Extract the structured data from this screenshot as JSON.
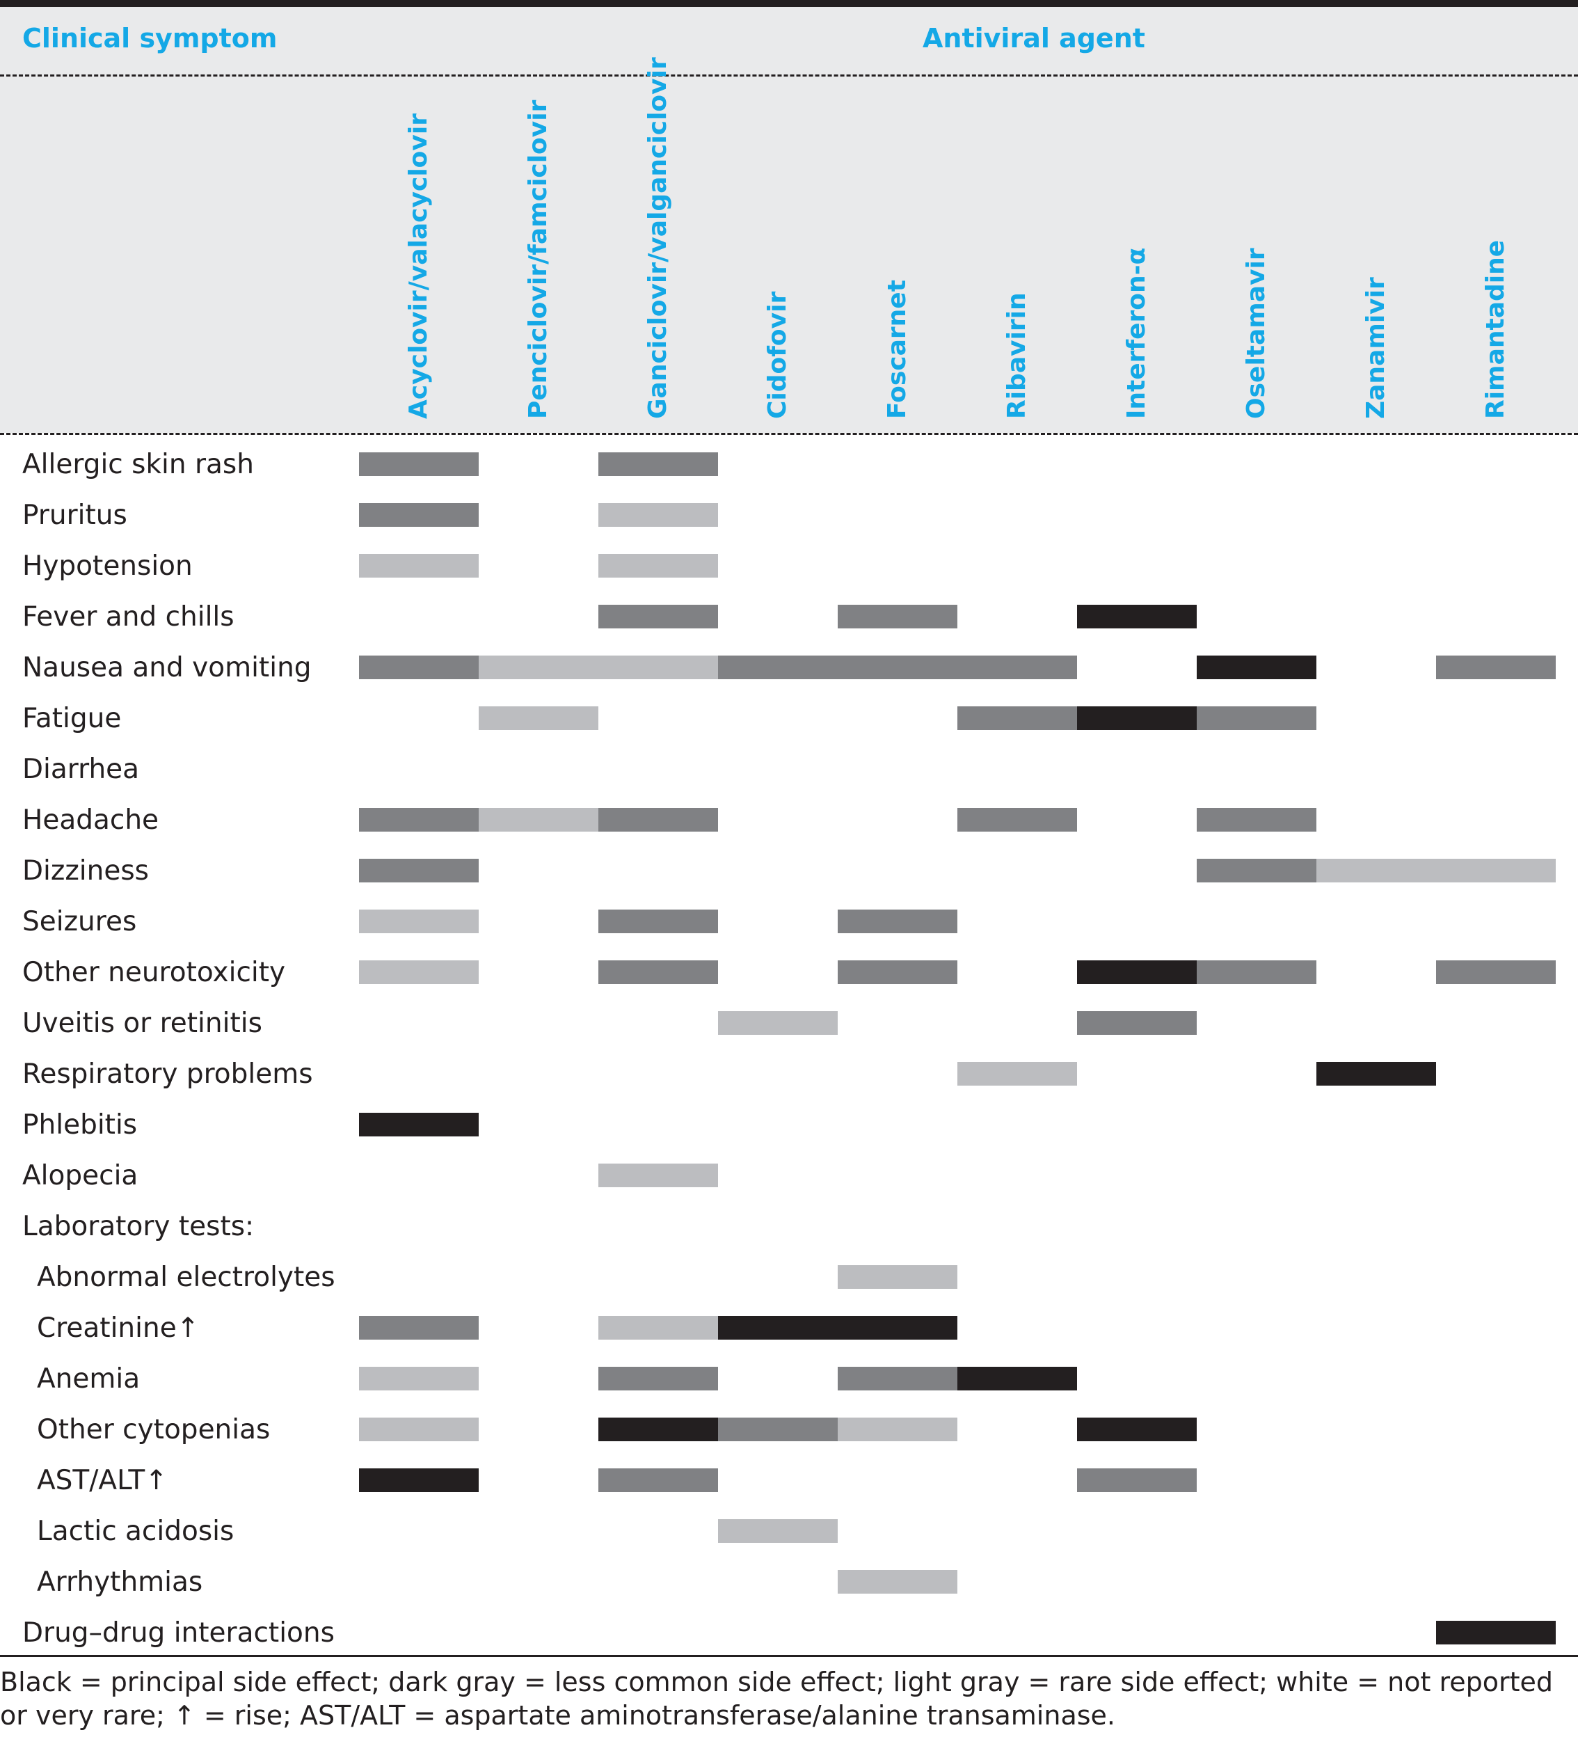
{
  "header": {
    "symptom_title": "Clinical symptom",
    "agent_title": "Antiviral agent"
  },
  "colors": {
    "header_text": "#14a8e6",
    "header_bg": "#e9eaeb",
    "black": "#231f20",
    "dark_gray": "#808184",
    "light_gray": "#bcbdc0"
  },
  "agents": [
    "Acyclovir/valacyclovir",
    "Penciclovir/famciclovir",
    "Ganciclovir/valganciclovir",
    "Cidofovir",
    "Foscarnet",
    "Ribavirin",
    "Interferon-α",
    "Oseltamavir",
    "Zanamivir",
    "Rimantadine"
  ],
  "rows": [
    {
      "label": "Allergic skin rash",
      "levels": [
        "dark",
        "",
        "dark",
        "",
        "",
        "",
        "",
        "",
        "",
        ""
      ]
    },
    {
      "label": "Pruritus",
      "levels": [
        "dark",
        "",
        "light",
        "",
        "",
        "",
        "",
        "",
        "",
        ""
      ]
    },
    {
      "label": "Hypotension",
      "levels": [
        "light",
        "",
        "light",
        "",
        "",
        "",
        "",
        "",
        "",
        ""
      ]
    },
    {
      "label": "Fever and chills",
      "levels": [
        "",
        "",
        "dark",
        "",
        "dark",
        "",
        "black",
        "",
        "",
        ""
      ]
    },
    {
      "label": "Nausea and vomiting",
      "levels": [
        "dark",
        "light",
        "light",
        "dark",
        "dark",
        "dark",
        "",
        "black",
        "",
        "dark"
      ]
    },
    {
      "label": "Fatigue",
      "levels": [
        "",
        "light",
        "",
        "",
        "",
        "dark",
        "black",
        "dark",
        "",
        ""
      ]
    },
    {
      "label": "Diarrhea",
      "levels": [
        "",
        "",
        "",
        "",
        "",
        "",
        "",
        "",
        "",
        ""
      ]
    },
    {
      "label": "Headache",
      "levels": [
        "dark",
        "light",
        "dark",
        "",
        "",
        "dark",
        "",
        "dark",
        "",
        ""
      ]
    },
    {
      "label": "Dizziness",
      "levels": [
        "dark",
        "",
        "",
        "",
        "",
        "",
        "",
        "dark",
        "light",
        "light"
      ]
    },
    {
      "label": "Seizures",
      "levels": [
        "light",
        "",
        "dark",
        "",
        "dark",
        "",
        "",
        "",
        "",
        ""
      ]
    },
    {
      "label": "Other neurotoxicity",
      "levels": [
        "light",
        "",
        "dark",
        "",
        "dark",
        "",
        "black",
        "dark",
        "",
        "dark"
      ]
    },
    {
      "label": "Uveitis or retinitis",
      "levels": [
        "",
        "",
        "",
        "light",
        "",
        "",
        "dark",
        "",
        "",
        ""
      ]
    },
    {
      "label": "Respiratory problems",
      "levels": [
        "",
        "",
        "",
        "",
        "",
        "light",
        "",
        "",
        "black",
        ""
      ]
    },
    {
      "label": "Phlebitis",
      "levels": [
        "black",
        "",
        "",
        "",
        "",
        "",
        "",
        "",
        "",
        ""
      ]
    },
    {
      "label": "Alopecia",
      "levels": [
        "",
        "",
        "light",
        "",
        "",
        "",
        "",
        "",
        "",
        ""
      ]
    },
    {
      "label": "Laboratory tests:",
      "levels": [
        "",
        "",
        "",
        "",
        "",
        "",
        "",
        "",
        "",
        ""
      ]
    },
    {
      "label": "Abnormal electrolytes",
      "indent": true,
      "levels": [
        "",
        "",
        "",
        "",
        "light",
        "",
        "",
        "",
        "",
        ""
      ]
    },
    {
      "label": "Creatinine↑",
      "indent": true,
      "levels": [
        "dark",
        "",
        "light",
        "black",
        "black",
        "",
        "",
        "",
        "",
        ""
      ]
    },
    {
      "label": "Anemia",
      "indent": true,
      "levels": [
        "light",
        "",
        "dark",
        "",
        "dark",
        "black",
        "",
        "",
        "",
        ""
      ]
    },
    {
      "label": "Other cytopenias",
      "indent": true,
      "levels": [
        "light",
        "",
        "black",
        "dark",
        "light",
        "",
        "black",
        "",
        "",
        ""
      ]
    },
    {
      "label": "AST/ALT↑",
      "indent": true,
      "levels": [
        "black",
        "",
        "dark",
        "",
        "",
        "",
        "dark",
        "",
        "",
        ""
      ]
    },
    {
      "label": "Lactic acidosis",
      "indent": true,
      "levels": [
        "",
        "",
        "",
        "light",
        "",
        "",
        "",
        "",
        "",
        ""
      ]
    },
    {
      "label": "Arrhythmias",
      "indent": true,
      "levels": [
        "",
        "",
        "",
        "",
        "light",
        "",
        "",
        "",
        "",
        ""
      ]
    },
    {
      "label": "Drug–drug interactions",
      "levels": [
        "",
        "",
        "",
        "",
        "",
        "",
        "",
        "",
        "",
        "black"
      ]
    }
  ],
  "footnote": "Black = principal side effect; dark gray = less common side effect; light gray = rare side effect; white = not reported or very rare; ↑ = rise; AST/ALT = aspartate aminotransferase/alanine transaminase."
}
